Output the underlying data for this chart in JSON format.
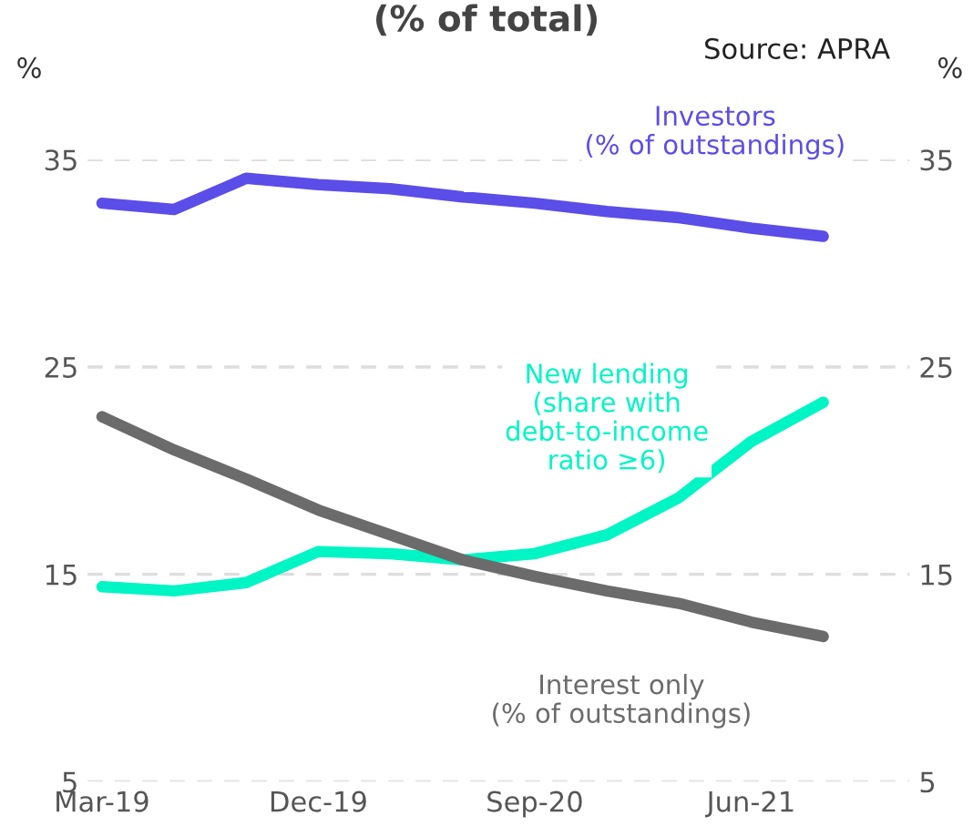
{
  "chart_data": {
    "type": "line",
    "title": "(% of total)",
    "ylabel": "%",
    "y2label": "%",
    "annotations": [
      "Source: APRA"
    ],
    "categories": [
      "Mar-19",
      null,
      null,
      "Dec-19",
      null,
      null,
      "Sep-20",
      null,
      null,
      "Jun-21",
      null
    ],
    "series": [
      {
        "name": "Investors\n(% of outstandings)",
        "color": "#5b4de8",
        "values": [
          32.9,
          32.6,
          34.1,
          33.8,
          33.6,
          33.2,
          32.9,
          32.5,
          32.2,
          31.7,
          31.3
        ]
      },
      {
        "name": "New lending\n(share with\ndebt-to-income\nratio ≥6)",
        "color": "#00f5c4",
        "values": [
          14.4,
          14.2,
          14.6,
          16.1,
          16.0,
          15.7,
          16.0,
          16.9,
          18.7,
          21.4,
          23.3
        ]
      },
      {
        "name": "Interest only\n(% of outstandings)",
        "color": "#6b6b6b",
        "values": [
          22.6,
          21.0,
          19.6,
          18.1,
          16.9,
          15.7,
          14.9,
          14.2,
          13.6,
          12.7,
          12.0
        ]
      }
    ],
    "ylim": [
      5,
      35
    ],
    "yticks": [
      5,
      15,
      25,
      35
    ],
    "y2lim": [
      5,
      35
    ],
    "y2ticks": [
      5,
      15,
      25,
      35
    ],
    "grid": "y",
    "legend": false,
    "marker": "none",
    "line_style": "solid"
  }
}
